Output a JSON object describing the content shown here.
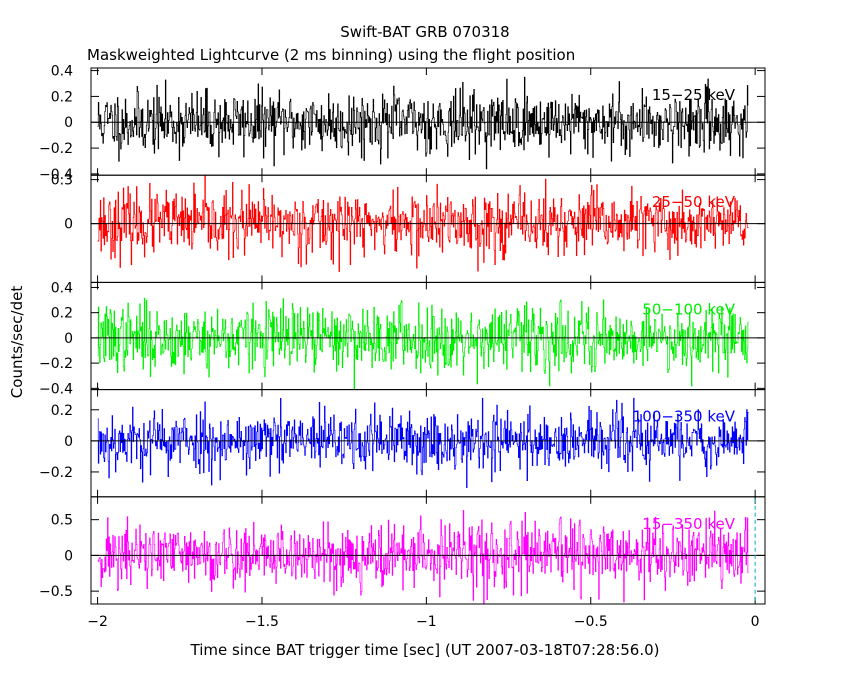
{
  "title": "Swift-BAT GRB 070318",
  "subtitle": "Maskweighted Lightcurve (2 ms binning) using the flight position",
  "xlabel": "Time since BAT trigger time [sec] (UT 2007-03-18T07:28:56.0)",
  "ylabel": "Counts/sec/det",
  "chart_data": {
    "type": "line",
    "title": "Swift-BAT GRB 070318",
    "subtitle": "Maskweighted Lightcurve (2 ms binning) using the flight position",
    "xlabel": "Time since BAT trigger time [sec] (UT 2007-03-18T07:28:56.0)",
    "ylabel": "Counts/sec/det",
    "xlim": [
      -2.02,
      0.03
    ],
    "x_ticks": [
      -2,
      -1.5,
      -1,
      -0.5,
      0
    ],
    "x_tick_labels": [
      "−2",
      "−1.5",
      "−1",
      "−0.5",
      "0"
    ],
    "x_start": -2.0,
    "x_end": -0.02,
    "bin_width": 0.002,
    "trigger_line_x": 0,
    "panels": [
      {
        "name": "15−25 keV",
        "color": "#000000",
        "ylim": [
          -0.41,
          0.42
        ],
        "y_ticks": [
          -0.4,
          -0.2,
          0,
          0.2,
          0.4
        ],
        "y_tick_labels": [
          "−0.4",
          "−0.2",
          "0",
          "0.2",
          "0.4"
        ],
        "noise_sigma": 0.12,
        "seed": 11
      },
      {
        "name": "25−50 keV",
        "color": "#ff0000",
        "ylim": [
          -0.4,
          0.33
        ],
        "y_ticks": [
          0,
          0.3
        ],
        "y_tick_labels": [
          "0",
          "0.3"
        ],
        "noise_sigma": 0.11,
        "seed": 23
      },
      {
        "name": "50−100 keV",
        "color": "#00ee00",
        "ylim": [
          -0.41,
          0.44
        ],
        "y_ticks": [
          -0.4,
          -0.2,
          0,
          0.2,
          0.4
        ],
        "y_tick_labels": [
          "−0.4",
          "−0.2",
          "0",
          "0.2",
          "0.4"
        ],
        "noise_sigma": 0.13,
        "seed": 37
      },
      {
        "name": "100−350 keV",
        "color": "#0000ff",
        "ylim": [
          -0.36,
          0.33
        ],
        "y_ticks": [
          -0.2,
          0,
          0.2
        ],
        "y_tick_labels": [
          "−0.2",
          "0",
          "0.2"
        ],
        "noise_sigma": 0.1,
        "seed": 53
      },
      {
        "name": "15−350 keV",
        "color": "#ff00ff",
        "ylim": [
          -0.68,
          0.82
        ],
        "y_ticks": [
          -0.5,
          0,
          0.5
        ],
        "y_tick_labels": [
          "−0.5",
          "0",
          "0.5"
        ],
        "noise_sigma": 0.23,
        "seed": 71
      }
    ]
  }
}
